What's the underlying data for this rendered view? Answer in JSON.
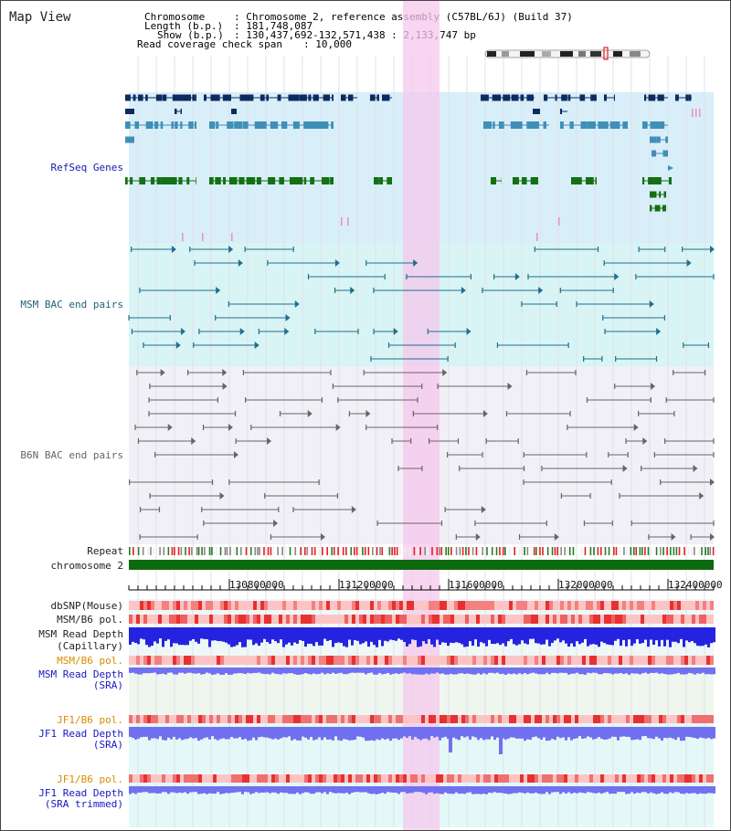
{
  "title": "Map View",
  "info": {
    "chromosome_label": "Chromosome",
    "chromosome_value": ": Chromosome 2, reference assembly (C57BL/6J) (Build 37)",
    "length_label": "Length (b.p.)",
    "length_value": ": 181,748,087",
    "show_label": "Show (b.p.)",
    "show_value": ": 130,437,692-132,571,438 : 2,133,747 bp",
    "span_label": "Read coverage check span",
    "span_value": ": 10,000"
  },
  "tracks": {
    "refseq": "RefSeq Genes",
    "msm_bac": "MSM BAC end pairs",
    "b6n_bac": "B6N BAC end pairs",
    "repeat": "Repeat",
    "chromosome": "chromosome 2",
    "dbsnp": "dbSNP(Mouse)",
    "msm_pol": "MSM/B6 pol.",
    "msm_depth_cap_1": "MSM Read Depth",
    "msm_depth_cap_2": "(Capillary)",
    "msm_pol_sra": "MSM/B6 pol.",
    "msm_depth_sra_1": "MSM Read Depth",
    "msm_depth_sra_2": "(SRA)",
    "jf1_pol": "JF1/B6 pol.",
    "jf1_depth_1": "JF1 Read Depth",
    "jf1_depth_2": "(SRA)",
    "jf1_pol_trim": "JF1/B6 pol.",
    "jf1_trim_1": "JF1 Read Depth",
    "jf1_trim_2": "(SRA trimmed)"
  },
  "ruler": {
    "ticks": [
      "130800000",
      "131200000",
      "131600000",
      "132000000",
      "132400000"
    ]
  },
  "colors": {
    "refseq_bg": "#d8eef8",
    "msm_bg": "#d8f4f4",
    "b6n_bg": "#f0f0f6",
    "highlight": "#f6c8ec",
    "gene_dark": "#0d2b60",
    "gene_mid": "#3f8fb8",
    "gene_green": "#137013",
    "msm_line": "#1f6f8f",
    "b6n_line": "#666666",
    "chrom_bar": "#0e6a0e",
    "depth_blue": "#2424e0",
    "depth_light": "#7070f0"
  }
}
